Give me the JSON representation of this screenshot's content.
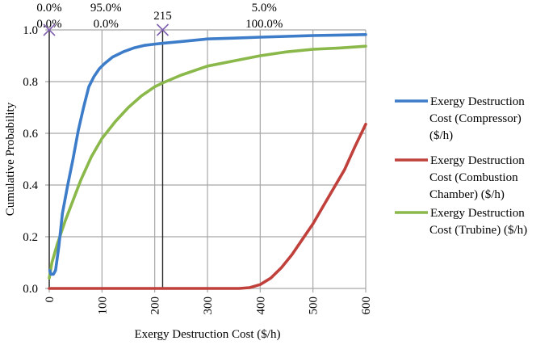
{
  "chart_data": {
    "type": "line",
    "title": "",
    "xlabel": "Exergy Destruction Cost ($/h)",
    "ylabel": "Cumulative Probability",
    "xlim": [
      0,
      600
    ],
    "ylim": [
      0,
      1.0
    ],
    "xticks": [
      "0",
      "100",
      "200",
      "300",
      "400",
      "500",
      "600"
    ],
    "yticks": [
      "0.0",
      "0.2",
      "0.4",
      "0.6",
      "0.8",
      "1.0"
    ],
    "grid": true,
    "legend_position": "right",
    "series": [
      {
        "name": "Exergy Destruction Cost (Compressor) ($/h)",
        "legend_lines": [
          "Exergy Destruction",
          "Cost (Compressor)",
          "($/h)"
        ],
        "color": "#3d7cc9",
        "x": [
          1,
          3,
          8,
          12,
          18,
          25,
          35,
          45,
          55,
          65,
          75,
          85,
          95,
          105,
          120,
          140,
          160,
          180,
          200,
          215,
          250,
          300,
          350,
          400,
          450,
          500,
          550,
          600
        ],
        "y": [
          0.07,
          0.055,
          0.055,
          0.07,
          0.16,
          0.29,
          0.4,
          0.5,
          0.61,
          0.7,
          0.78,
          0.82,
          0.85,
          0.87,
          0.895,
          0.915,
          0.93,
          0.94,
          0.945,
          0.948,
          0.955,
          0.965,
          0.968,
          0.972,
          0.975,
          0.978,
          0.98,
          0.982
        ]
      },
      {
        "name": "Exergy Destruction Cost (Combustion Chamber) ($/h)",
        "legend_lines": [
          "Exergy Destruction",
          "Cost (Combustion",
          "Chamber) ($/h)"
        ],
        "color": "#c0403c",
        "x": [
          0,
          100,
          200,
          300,
          360,
          380,
          400,
          420,
          440,
          460,
          480,
          500,
          520,
          540,
          560,
          580,
          600
        ],
        "y": [
          0.0,
          0.0,
          0.0,
          0.0,
          0.0,
          0.003,
          0.015,
          0.04,
          0.08,
          0.13,
          0.19,
          0.25,
          0.32,
          0.39,
          0.46,
          0.55,
          0.635
        ]
      },
      {
        "name": "Exergy Destruction Cost (Trubine) ($/h)",
        "legend_lines": [
          "Exergy Destruction",
          "Cost (Trubine) ($/h)"
        ],
        "color": "#8ab84a",
        "x": [
          0,
          5,
          15,
          30,
          45,
          60,
          80,
          100,
          125,
          150,
          175,
          200,
          215,
          250,
          300,
          350,
          400,
          450,
          500,
          550,
          600
        ],
        "y": [
          0.04,
          0.1,
          0.17,
          0.26,
          0.34,
          0.42,
          0.51,
          0.58,
          0.645,
          0.7,
          0.745,
          0.78,
          0.795,
          0.825,
          0.86,
          0.88,
          0.9,
          0.915,
          0.925,
          0.93,
          0.937
        ]
      }
    ],
    "annotations": {
      "markers": [
        {
          "x": 0,
          "y": 1.0,
          "color": "#8060b0"
        },
        {
          "x": 215,
          "y": 1.0,
          "color": "#8060b0"
        }
      ],
      "vertical_lines": [
        0,
        215
      ],
      "marker_value_label": "215",
      "labels_row1": [
        {
          "x": 0,
          "text": "0.0%"
        },
        {
          "x": 107.5,
          "text": "95.0%"
        },
        {
          "x": 407.5,
          "text": "5.0%"
        }
      ],
      "labels_row2": [
        {
          "x": 0,
          "text": "0.0%"
        },
        {
          "x": 107.5,
          "text": "0.0%"
        },
        {
          "x": 407.5,
          "text": "100.0%"
        }
      ]
    }
  }
}
